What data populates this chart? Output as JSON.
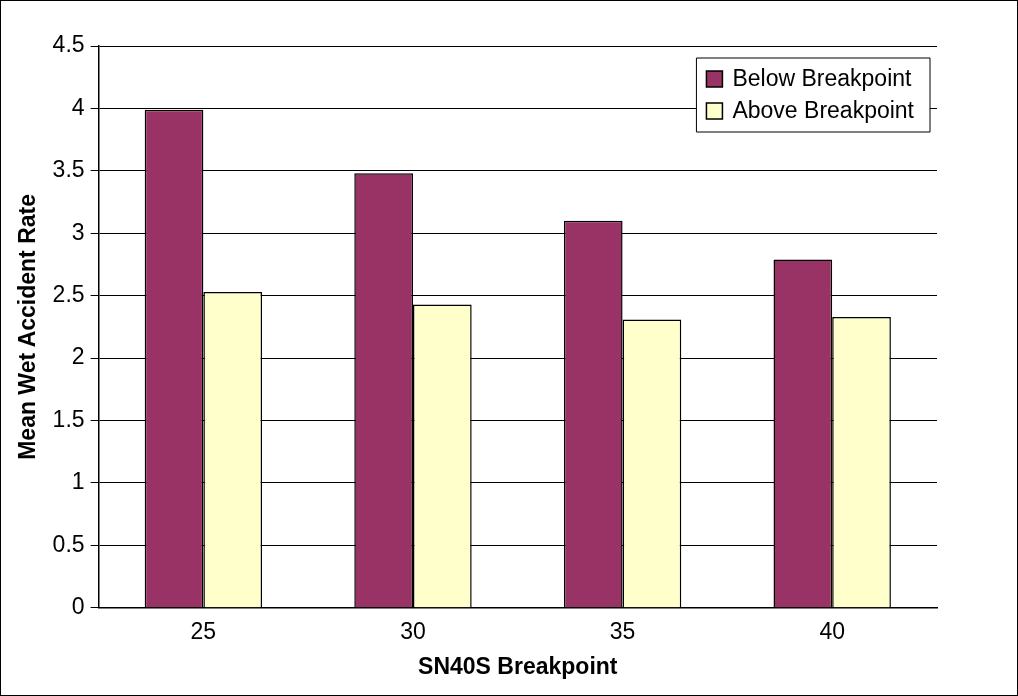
{
  "chart_data": {
    "type": "bar",
    "xlabel": "SN40S Breakpoint",
    "ylabel": "Mean Wet Accident Rate",
    "categories": [
      "25",
      "30",
      "35",
      "40"
    ],
    "series": [
      {
        "name": "Below Breakpoint",
        "color": "#993366",
        "values": [
          3.99,
          3.48,
          3.1,
          2.79
        ]
      },
      {
        "name": "Above Breakpoint",
        "color": "#ffffcc",
        "values": [
          2.53,
          2.43,
          2.31,
          2.33
        ]
      }
    ],
    "ylim": [
      0,
      4.5
    ],
    "yticks": [
      0,
      0.5,
      1,
      1.5,
      2,
      2.5,
      3,
      3.5,
      4,
      4.5
    ],
    "grid": "y",
    "legend": "top right"
  }
}
